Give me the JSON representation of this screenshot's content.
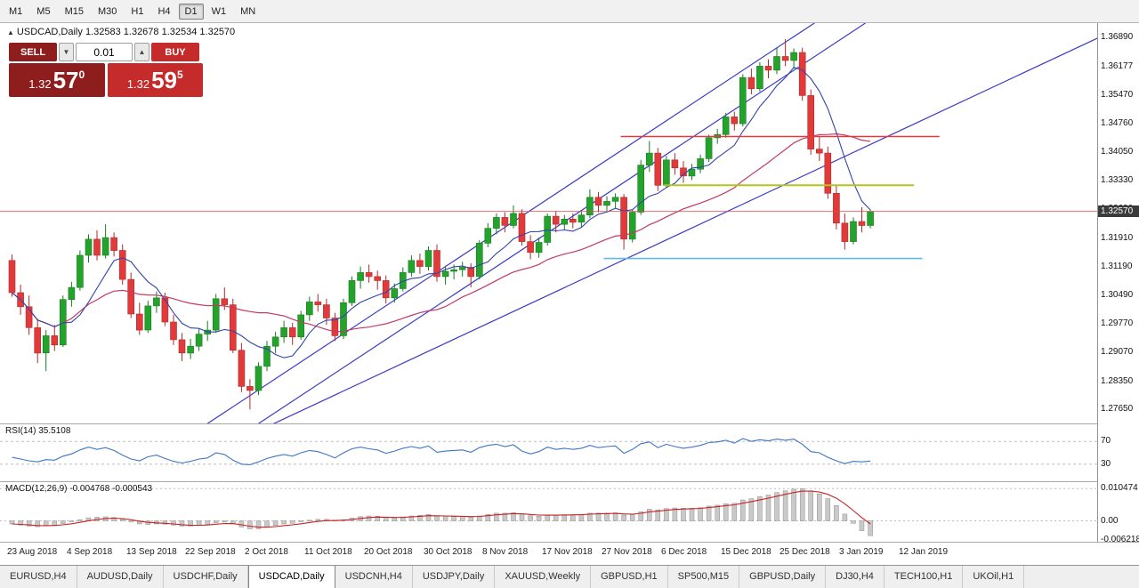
{
  "colors": {
    "bull": "#23a32c",
    "bull_edge": "#177d1f",
    "bear": "#e23a3a",
    "bear_edge": "#b02a2a",
    "ma_fast": "#3344aa",
    "ma_slow": "#c13a66",
    "trend": "#3a3ac8",
    "bid": "#d94b4b",
    "rsi": "#3e76c4",
    "rsi_level": "#bdbdbd",
    "macd_bar": "#c9c9c9",
    "macd_bar_edge": "#8f8f8f",
    "macd_signal": "#cc2222"
  },
  "toolbar": {
    "timeframes": [
      {
        "label": "M1",
        "active": false
      },
      {
        "label": "M5",
        "active": false
      },
      {
        "label": "M15",
        "active": false
      },
      {
        "label": "M30",
        "active": false
      },
      {
        "label": "H1",
        "active": false
      },
      {
        "label": "H4",
        "active": false
      },
      {
        "label": "D1",
        "active": true
      },
      {
        "label": "W1",
        "active": false
      },
      {
        "label": "MN",
        "active": false
      }
    ]
  },
  "chart": {
    "collapse_arrow": "▲",
    "symbol_title": "USDCAD,Daily",
    "ohlc_line": "1.32583 1.32678 1.32534 1.32570",
    "current_price": "1.32570",
    "price_scale": [
      "1.36890",
      "1.36177",
      "1.35470",
      "1.34760",
      "1.34050",
      "1.33330",
      "1.32630",
      "1.31910",
      "1.31190",
      "1.30490",
      "1.29770",
      "1.29070",
      "1.28350",
      "1.27650"
    ],
    "trade_panel": {
      "sell_label": "SELL",
      "buy_label": "BUY",
      "volume": "0.01",
      "spin_down": "▼",
      "spin_up": "▲",
      "sell_price_prefix": "1.32",
      "sell_price_pips": "57",
      "sell_price_point": "0",
      "buy_price_prefix": "1.32",
      "buy_price_pips": "59",
      "buy_price_point": "5"
    }
  },
  "rsi": {
    "label": "RSI(14) 35.5108",
    "level_labels": [
      "70",
      "30"
    ]
  },
  "macd": {
    "label": "MACD(12,26,9) -0.004768 -0.000543",
    "scale": [
      "0.010474",
      "0.00",
      "-0.006218"
    ]
  },
  "x_axis": {
    "labels": [
      "23 Aug 2018",
      "4 Sep 2018",
      "13 Sep 2018",
      "22 Sep 2018",
      "2 Oct 2018",
      "11 Oct 2018",
      "20 Oct 2018",
      "30 Oct 2018",
      "8 Nov 2018",
      "17 Nov 2018",
      "27 Nov 2018",
      "6 Dec 2018",
      "15 Dec 2018",
      "25 Dec 2018",
      "3 Jan 2019",
      "12 Jan 2019"
    ]
  },
  "tabs": [
    {
      "label": "EURUSD,H4",
      "active": false
    },
    {
      "label": "AUDUSD,Daily",
      "active": false
    },
    {
      "label": "USDCHF,Daily",
      "active": false
    },
    {
      "label": "USDCAD,Daily",
      "active": true
    },
    {
      "label": "USDCNH,H4",
      "active": false
    },
    {
      "label": "USDJPY,Daily",
      "active": false
    },
    {
      "label": "XAUUSD,Weekly",
      "active": false
    },
    {
      "label": "GBPUSD,H1",
      "active": false
    },
    {
      "label": "SP500,M15",
      "active": false
    },
    {
      "label": "GBPUSD,Daily",
      "active": false
    },
    {
      "label": "DJ30,H4",
      "active": false
    },
    {
      "label": "TECH100,H1",
      "active": false
    },
    {
      "label": "UKOil,H1",
      "active": false
    }
  ],
  "chart_data": [
    {
      "type": "candlestick",
      "symbol": "USDCAD",
      "timeframe": "Daily",
      "y_range": [
        1.273,
        1.3725
      ],
      "last_price": 1.3257,
      "ohlc": [
        [
          1.3135,
          1.315,
          1.3045,
          1.3055
        ],
        [
          1.3055,
          1.3075,
          1.3,
          1.302
        ],
        [
          1.302,
          1.3048,
          1.295,
          1.2968
        ],
        [
          1.2968,
          1.299,
          1.288,
          1.2905
        ],
        [
          1.2905,
          1.2962,
          1.286,
          1.2948
        ],
        [
          1.2948,
          1.2975,
          1.291,
          1.2925
        ],
        [
          1.2925,
          1.3048,
          1.292,
          1.3038
        ],
        [
          1.3038,
          1.3082,
          1.302,
          1.3068
        ],
        [
          1.3068,
          1.316,
          1.306,
          1.3148
        ],
        [
          1.3148,
          1.32,
          1.313,
          1.3188
        ],
        [
          1.3188,
          1.321,
          1.3135,
          1.3148
        ],
        [
          1.3148,
          1.3225,
          1.314,
          1.3192
        ],
        [
          1.3192,
          1.3205,
          1.3145,
          1.316
        ],
        [
          1.316,
          1.3175,
          1.3075,
          1.3088
        ],
        [
          1.3088,
          1.3105,
          1.2992,
          1.3002
        ],
        [
          1.3002,
          1.303,
          1.295,
          1.2962
        ],
        [
          1.2962,
          1.3035,
          1.2955,
          1.3022
        ],
        [
          1.3022,
          1.3058,
          1.3005,
          1.3042
        ],
        [
          1.3042,
          1.3055,
          1.2972,
          1.2982
        ],
        [
          1.2982,
          1.3,
          1.2925,
          1.2938
        ],
        [
          1.2938,
          1.2955,
          1.2885,
          1.2905
        ],
        [
          1.2905,
          1.294,
          1.289,
          1.2922
        ],
        [
          1.2922,
          1.2965,
          1.291,
          1.2952
        ],
        [
          1.2952,
          1.2985,
          1.2935,
          1.2962
        ],
        [
          1.2962,
          1.3052,
          1.2955,
          1.304
        ],
        [
          1.304,
          1.3068,
          1.3012,
          1.3025
        ],
        [
          1.3025,
          1.304,
          1.2905,
          1.2912
        ],
        [
          1.2912,
          1.293,
          1.2808,
          1.2822
        ],
        [
          1.2822,
          1.284,
          1.2765,
          1.2812
        ],
        [
          1.2812,
          1.2882,
          1.28,
          1.2872
        ],
        [
          1.2872,
          1.2935,
          1.286,
          1.2922
        ],
        [
          1.2922,
          1.2958,
          1.2905,
          1.2945
        ],
        [
          1.2945,
          1.2985,
          1.293,
          1.2968
        ],
        [
          1.2968,
          1.298,
          1.2925,
          1.2945
        ],
        [
          1.2945,
          1.301,
          1.2938,
          1.3
        ],
        [
          1.3,
          1.3045,
          1.2985,
          1.3032
        ],
        [
          1.3032,
          1.3052,
          1.3008,
          1.3025
        ],
        [
          1.3025,
          1.304,
          1.2975,
          1.2992
        ],
        [
          1.2992,
          1.3005,
          1.2935,
          1.2948
        ],
        [
          1.2948,
          1.304,
          1.294,
          1.303
        ],
        [
          1.303,
          1.3095,
          1.3022,
          1.3085
        ],
        [
          1.3085,
          1.312,
          1.3065,
          1.3105
        ],
        [
          1.3105,
          1.3125,
          1.308,
          1.3095
        ],
        [
          1.3095,
          1.311,
          1.3062,
          1.3085
        ],
        [
          1.3085,
          1.3098,
          1.3028,
          1.3042
        ],
        [
          1.3042,
          1.3078,
          1.303,
          1.3065
        ],
        [
          1.3065,
          1.3118,
          1.3058,
          1.3105
        ],
        [
          1.3105,
          1.3148,
          1.3095,
          1.3135
        ],
        [
          1.3135,
          1.3152,
          1.3102,
          1.312
        ],
        [
          1.312,
          1.317,
          1.311,
          1.316
        ],
        [
          1.316,
          1.3175,
          1.3082,
          1.3095
        ],
        [
          1.3095,
          1.3122,
          1.3075,
          1.3108
        ],
        [
          1.3108,
          1.3125,
          1.3088,
          1.3112
        ],
        [
          1.3112,
          1.3132,
          1.3095,
          1.3118
        ],
        [
          1.3118,
          1.3128,
          1.3068,
          1.3095
        ],
        [
          1.3095,
          1.3185,
          1.3088,
          1.3178
        ],
        [
          1.3178,
          1.3228,
          1.3168,
          1.3215
        ],
        [
          1.3215,
          1.3252,
          1.32,
          1.3242
        ],
        [
          1.3242,
          1.3255,
          1.3205,
          1.3222
        ],
        [
          1.3222,
          1.3272,
          1.3215,
          1.3252
        ],
        [
          1.3252,
          1.3262,
          1.3172,
          1.3182
        ],
        [
          1.3182,
          1.3198,
          1.3138,
          1.3155
        ],
        [
          1.3155,
          1.3192,
          1.3142,
          1.318
        ],
        [
          1.318,
          1.3252,
          1.3172,
          1.3245
        ],
        [
          1.3245,
          1.3258,
          1.3205,
          1.3225
        ],
        [
          1.3225,
          1.3248,
          1.321,
          1.3238
        ],
        [
          1.3238,
          1.3252,
          1.3215,
          1.323
        ],
        [
          1.323,
          1.3258,
          1.3218,
          1.3248
        ],
        [
          1.3248,
          1.3312,
          1.324,
          1.3292
        ],
        [
          1.3292,
          1.3305,
          1.3255,
          1.3272
        ],
        [
          1.3272,
          1.3295,
          1.3258,
          1.3282
        ],
        [
          1.3282,
          1.3302,
          1.3265,
          1.3292
        ],
        [
          1.3292,
          1.33,
          1.3162,
          1.3188
        ],
        [
          1.3188,
          1.3262,
          1.318,
          1.3255
        ],
        [
          1.3255,
          1.3385,
          1.3248,
          1.3372
        ],
        [
          1.3372,
          1.3432,
          1.3355,
          1.3402
        ],
        [
          1.3402,
          1.3415,
          1.3308,
          1.3322
        ],
        [
          1.3322,
          1.3395,
          1.3315,
          1.3385
        ],
        [
          1.3385,
          1.3402,
          1.3348,
          1.3365
        ],
        [
          1.3365,
          1.3382,
          1.3328,
          1.3345
        ],
        [
          1.3345,
          1.3375,
          1.3335,
          1.3362
        ],
        [
          1.3362,
          1.3398,
          1.3352,
          1.3388
        ],
        [
          1.3388,
          1.3448,
          1.338,
          1.344
        ],
        [
          1.344,
          1.3462,
          1.3425,
          1.3448
        ],
        [
          1.3448,
          1.3502,
          1.344,
          1.3492
        ],
        [
          1.3492,
          1.3505,
          1.3458,
          1.3475
        ],
        [
          1.3475,
          1.3598,
          1.3468,
          1.359
        ],
        [
          1.359,
          1.3612,
          1.3548,
          1.3562
        ],
        [
          1.3562,
          1.3628,
          1.3555,
          1.3618
        ],
        [
          1.3618,
          1.3635,
          1.3588,
          1.3608
        ],
        [
          1.3608,
          1.3665,
          1.3598,
          1.3642
        ],
        [
          1.3642,
          1.3685,
          1.3618,
          1.3632
        ],
        [
          1.3632,
          1.3662,
          1.3612,
          1.3652
        ],
        [
          1.3652,
          1.3664,
          1.3532,
          1.3545
        ],
        [
          1.3545,
          1.356,
          1.3398,
          1.3412
        ],
        [
          1.3412,
          1.3442,
          1.3382,
          1.3402
        ],
        [
          1.3402,
          1.3418,
          1.3288,
          1.3302
        ],
        [
          1.3302,
          1.3322,
          1.3212,
          1.3228
        ],
        [
          1.3228,
          1.3252,
          1.3162,
          1.3182
        ],
        [
          1.3182,
          1.3242,
          1.3175,
          1.3232
        ],
        [
          1.3232,
          1.3268,
          1.3205,
          1.3222
        ],
        [
          1.3222,
          1.3262,
          1.3215,
          1.3257
        ]
      ],
      "overlays": {
        "ma_fast_period": 7,
        "ma_slow_period": 25,
        "trendlines": [
          {
            "x1": -1,
            "p1": 1.2395,
            "x2": 131,
            "p2": 1.4235
          },
          {
            "x1": 5,
            "p1": 1.2395,
            "x2": 137,
            "p2": 1.4235
          },
          {
            "x1": 0,
            "p1": 1.2425,
            "x2": 131,
            "p2": 1.372
          }
        ],
        "hlines": [
          {
            "price": 1.3443,
            "x1": 72,
            "x2": 109.5,
            "color": "#e23a3a",
            "width": 1.6
          },
          {
            "price": 1.3322,
            "x1": 77,
            "x2": 106.5,
            "color": "#b6c41c",
            "width": 2
          },
          {
            "price": 1.314,
            "x1": 70,
            "x2": 107.5,
            "color": "#63b8ea",
            "width": 1.6
          }
        ]
      }
    },
    {
      "type": "line",
      "name": "RSI(14)",
      "current_value": 35.5108,
      "y_range": [
        0,
        100
      ],
      "levels": [
        70,
        30
      ],
      "values": [
        42,
        39,
        36,
        34,
        38,
        37,
        44,
        48,
        55,
        60,
        56,
        59,
        54,
        46,
        39,
        36,
        43,
        46,
        40,
        35,
        32,
        35,
        39,
        41,
        50,
        47,
        37,
        30,
        29,
        34,
        40,
        44,
        47,
        44,
        50,
        54,
        52,
        47,
        41,
        50,
        57,
        60,
        57,
        55,
        49,
        53,
        58,
        61,
        58,
        62,
        51,
        53,
        54,
        55,
        51,
        59,
        63,
        65,
        61,
        64,
        53,
        48,
        52,
        60,
        56,
        58,
        56,
        58,
        63,
        59,
        61,
        62,
        49,
        56,
        66,
        69,
        59,
        65,
        61,
        58,
        60,
        63,
        68,
        69,
        72,
        67,
        75,
        70,
        73,
        71,
        74,
        72,
        74,
        65,
        52,
        50,
        42,
        36,
        31,
        35,
        34,
        35.5
      ]
    },
    {
      "type": "bar",
      "name": "MACD(12,26,9)",
      "current_values": [
        -0.004768,
        -0.000543
      ],
      "y_range": [
        -0.0068,
        0.0126
      ],
      "dash_levels": [
        0.010474,
        0
      ],
      "values": [
        -0.001,
        -0.0014,
        -0.0017,
        -0.0019,
        -0.0016,
        -0.0014,
        -0.0009,
        -0.0003,
        0.0004,
        0.001,
        0.0012,
        0.0013,
        0.0011,
        0.0005,
        -0.0003,
        -0.001,
        -0.0012,
        -0.001,
        -0.0011,
        -0.0014,
        -0.0017,
        -0.0017,
        -0.0015,
        -0.0012,
        -0.0006,
        -0.0004,
        -0.001,
        -0.002,
        -0.0026,
        -0.0026,
        -0.0021,
        -0.0015,
        -0.001,
        -0.0008,
        -0.0003,
        0.0002,
        0.0005,
        0.0005,
        0.0002,
        0.0004,
        0.0009,
        0.0014,
        0.0016,
        0.0015,
        0.0011,
        0.001,
        0.0012,
        0.0016,
        0.0018,
        0.0021,
        0.0016,
        0.0015,
        0.0014,
        0.0014,
        0.0012,
        0.0016,
        0.0021,
        0.0025,
        0.0025,
        0.0027,
        0.0022,
        0.0017,
        0.0015,
        0.0018,
        0.0019,
        0.002,
        0.002,
        0.0021,
        0.0025,
        0.0025,
        0.0025,
        0.0026,
        0.0019,
        0.002,
        0.003,
        0.0038,
        0.0036,
        0.004,
        0.0042,
        0.0041,
        0.0041,
        0.0043,
        0.0048,
        0.0051,
        0.0056,
        0.0057,
        0.0068,
        0.0072,
        0.0079,
        0.0084,
        0.0092,
        0.0098,
        0.0103,
        0.0105,
        0.0098,
        0.0088,
        0.0072,
        0.005,
        0.0022,
        -0.0008,
        -0.0032,
        -0.0048
      ],
      "signal_alpha": 0.35
    }
  ]
}
